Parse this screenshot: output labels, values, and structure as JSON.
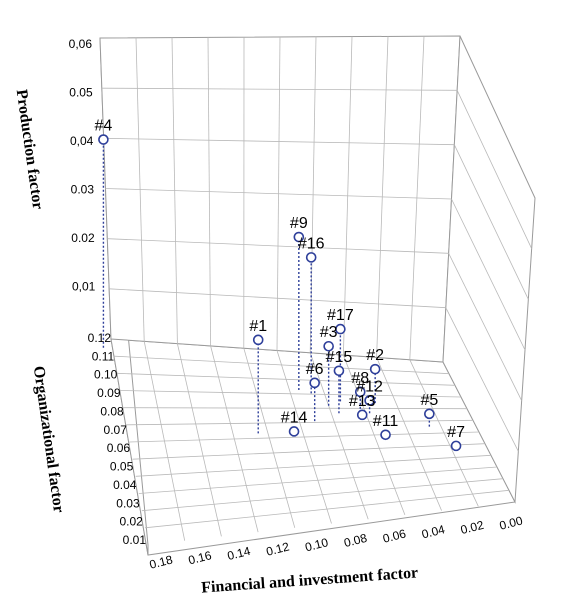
{
  "chart_data": {
    "type": "scatter3d",
    "title": "",
    "xlabel": "Financial and investment factor",
    "ylabel": "Organizational factor",
    "zlabel": "Production factor",
    "x_ticks": [
      "0.18",
      "0.16",
      "0.14",
      "0.12",
      "0.10",
      "0.08",
      "0.06",
      "0.04",
      "0.02",
      "0.00"
    ],
    "y_ticks": [
      "0.01",
      "0.02",
      "0.03",
      "0.04",
      "0.05",
      "0.06",
      "0.07",
      "0.08",
      "0.09",
      "0.10",
      "0.11",
      "0.12"
    ],
    "z_ticks": [
      "0,01",
      "0.02",
      "0.03",
      "0,04",
      "0.05",
      "0,06"
    ],
    "xlim": [
      0,
      0.18
    ],
    "ylim": [
      0.01,
      0.12
    ],
    "zlim": [
      0,
      0.06
    ],
    "grid": true,
    "points": [
      {
        "label": "#4",
        "x": 0.185,
        "y": 0.115,
        "z": 0.049
      },
      {
        "label": "#9",
        "x": 0.085,
        "y": 0.095,
        "z": 0.036
      },
      {
        "label": "#16",
        "x": 0.079,
        "y": 0.093,
        "z": 0.032
      },
      {
        "label": "#1",
        "x": 0.113,
        "y": 0.068,
        "z": 0.022
      },
      {
        "label": "#17",
        "x": 0.065,
        "y": 0.088,
        "z": 0.017
      },
      {
        "label": "#3",
        "x": 0.072,
        "y": 0.085,
        "z": 0.014
      },
      {
        "label": "#15",
        "x": 0.068,
        "y": 0.08,
        "z": 0.01
      },
      {
        "label": "#6",
        "x": 0.082,
        "y": 0.075,
        "z": 0.009
      },
      {
        "label": "#2",
        "x": 0.047,
        "y": 0.087,
        "z": 0.008
      },
      {
        "label": "#8",
        "x": 0.056,
        "y": 0.083,
        "z": 0.004
      },
      {
        "label": "#12",
        "x": 0.052,
        "y": 0.08,
        "z": 0.003
      },
      {
        "label": "#13",
        "x": 0.057,
        "y": 0.076,
        "z": 0.001
      },
      {
        "label": "#14",
        "x": 0.095,
        "y": 0.066,
        "z": 0.001
      },
      {
        "label": "#5",
        "x": 0.024,
        "y": 0.07,
        "z": 0.003
      },
      {
        "label": "#11",
        "x": 0.049,
        "y": 0.062,
        "z": 0.001
      },
      {
        "label": "#7",
        "x": 0.016,
        "y": 0.052,
        "z": 0.001
      }
    ]
  }
}
